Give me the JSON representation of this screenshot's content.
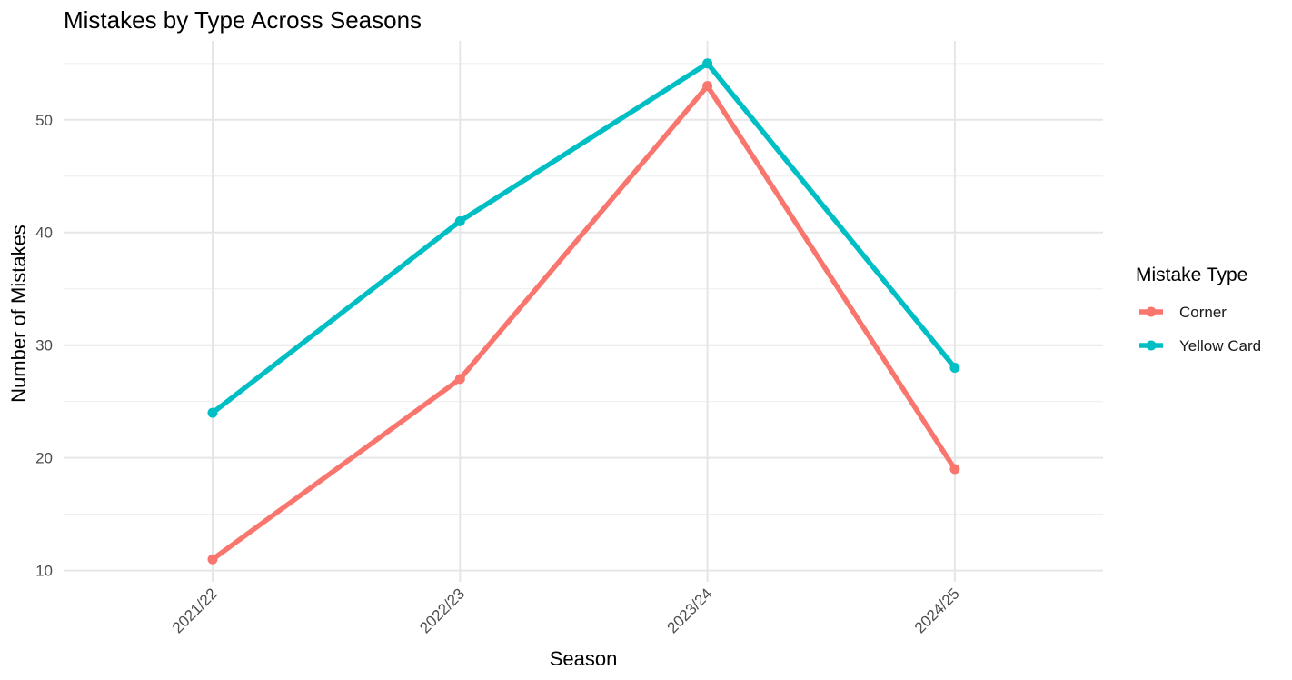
{
  "chart_data": {
    "type": "line",
    "title": "Mistakes by Type Across Seasons",
    "xlabel": "Season",
    "ylabel": "Number of Mistakes",
    "categories": [
      "2021/22",
      "2022/23",
      "2023/24",
      "2024/25"
    ],
    "y_ticks": [
      10,
      20,
      30,
      40,
      50
    ],
    "y_tick_labels": [
      "10",
      "20",
      "30",
      "40",
      "50"
    ],
    "ylim": [
      9.0,
      57.0
    ],
    "grid": true,
    "legend": {
      "title": "Mistake Type",
      "position": "right"
    },
    "series": [
      {
        "name": "Corner",
        "color": "#F8766D",
        "values": [
          11,
          27,
          53,
          19
        ]
      },
      {
        "name": "Yellow Card",
        "color": "#00BFC4",
        "values": [
          24,
          41,
          55,
          28
        ]
      }
    ]
  }
}
